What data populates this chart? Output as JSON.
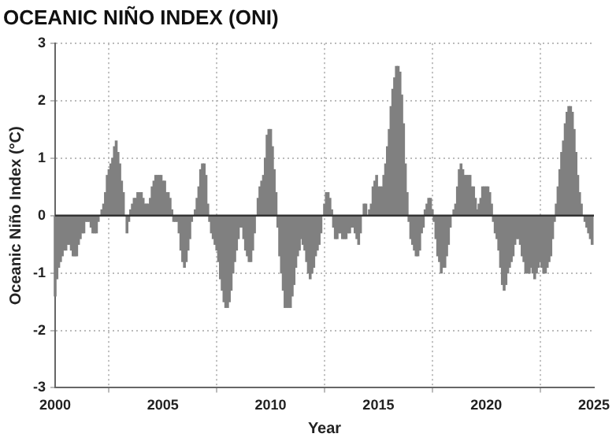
{
  "chart_data": {
    "type": "bar",
    "title": "OCEANIC NIÑO INDEX (ONI)",
    "xlabel": "Year",
    "ylabel": "Oceanic Niño Index (°C)",
    "x": [
      "2000-01",
      "2000-02",
      "2000-03",
      "2000-04",
      "2000-05",
      "2000-06",
      "2000-07",
      "2000-08",
      "2000-09",
      "2000-10",
      "2000-11",
      "2000-12",
      "2001-01",
      "2001-02",
      "2001-03",
      "2001-04",
      "2001-05",
      "2001-06",
      "2001-07",
      "2001-08",
      "2001-09",
      "2001-10",
      "2001-11",
      "2001-12",
      "2002-01",
      "2002-02",
      "2002-03",
      "2002-04",
      "2002-05",
      "2002-06",
      "2002-07",
      "2002-08",
      "2002-09",
      "2002-10",
      "2002-11",
      "2002-12",
      "2003-01",
      "2003-02",
      "2003-03",
      "2003-04",
      "2003-05",
      "2003-06",
      "2003-07",
      "2003-08",
      "2003-09",
      "2003-10",
      "2003-11",
      "2003-12",
      "2004-01",
      "2004-02",
      "2004-03",
      "2004-04",
      "2004-05",
      "2004-06",
      "2004-07",
      "2004-08",
      "2004-09",
      "2004-10",
      "2004-11",
      "2004-12",
      "2005-01",
      "2005-02",
      "2005-03",
      "2005-04",
      "2005-05",
      "2005-06",
      "2005-07",
      "2005-08",
      "2005-09",
      "2005-10",
      "2005-11",
      "2005-12",
      "2006-01",
      "2006-02",
      "2006-03",
      "2006-04",
      "2006-05",
      "2006-06",
      "2006-07",
      "2006-08",
      "2006-09",
      "2006-10",
      "2006-11",
      "2006-12",
      "2007-01",
      "2007-02",
      "2007-03",
      "2007-04",
      "2007-05",
      "2007-06",
      "2007-07",
      "2007-08",
      "2007-09",
      "2007-10",
      "2007-11",
      "2007-12",
      "2008-01",
      "2008-02",
      "2008-03",
      "2008-04",
      "2008-05",
      "2008-06",
      "2008-07",
      "2008-08",
      "2008-09",
      "2008-10",
      "2008-11",
      "2008-12",
      "2009-01",
      "2009-02",
      "2009-03",
      "2009-04",
      "2009-05",
      "2009-06",
      "2009-07",
      "2009-08",
      "2009-09",
      "2009-10",
      "2009-11",
      "2009-12",
      "2010-01",
      "2010-02",
      "2010-03",
      "2010-04",
      "2010-05",
      "2010-06",
      "2010-07",
      "2010-08",
      "2010-09",
      "2010-10",
      "2010-11",
      "2010-12",
      "2011-01",
      "2011-02",
      "2011-03",
      "2011-04",
      "2011-05",
      "2011-06",
      "2011-07",
      "2011-08",
      "2011-09",
      "2011-10",
      "2011-11",
      "2011-12",
      "2012-01",
      "2012-02",
      "2012-03",
      "2012-04",
      "2012-05",
      "2012-06",
      "2012-07",
      "2012-08",
      "2012-09",
      "2012-10",
      "2012-11",
      "2012-12",
      "2013-01",
      "2013-02",
      "2013-03",
      "2013-04",
      "2013-05",
      "2013-06",
      "2013-07",
      "2013-08",
      "2013-09",
      "2013-10",
      "2013-11",
      "2013-12",
      "2014-01",
      "2014-02",
      "2014-03",
      "2014-04",
      "2014-05",
      "2014-06",
      "2014-07",
      "2014-08",
      "2014-09",
      "2014-10",
      "2014-11",
      "2014-12",
      "2015-01",
      "2015-02",
      "2015-03",
      "2015-04",
      "2015-05",
      "2015-06",
      "2015-07",
      "2015-08",
      "2015-09",
      "2015-10",
      "2015-11",
      "2015-12",
      "2016-01",
      "2016-02",
      "2016-03",
      "2016-04",
      "2016-05",
      "2016-06",
      "2016-07",
      "2016-08",
      "2016-09",
      "2016-10",
      "2016-11",
      "2016-12",
      "2017-01",
      "2017-02",
      "2017-03",
      "2017-04",
      "2017-05",
      "2017-06",
      "2017-07",
      "2017-08",
      "2017-09",
      "2017-10",
      "2017-11",
      "2017-12",
      "2018-01",
      "2018-02",
      "2018-03",
      "2018-04",
      "2018-05",
      "2018-06",
      "2018-07",
      "2018-08",
      "2018-09",
      "2018-10",
      "2018-11",
      "2018-12",
      "2019-01",
      "2019-02",
      "2019-03",
      "2019-04",
      "2019-05",
      "2019-06",
      "2019-07",
      "2019-08",
      "2019-09",
      "2019-10",
      "2019-11",
      "2019-12",
      "2020-01",
      "2020-02",
      "2020-03",
      "2020-04",
      "2020-05",
      "2020-06",
      "2020-07",
      "2020-08",
      "2020-09",
      "2020-10",
      "2020-11",
      "2020-12",
      "2021-01",
      "2021-02",
      "2021-03",
      "2021-04",
      "2021-05",
      "2021-06",
      "2021-07",
      "2021-08",
      "2021-09",
      "2021-10",
      "2021-11",
      "2021-12",
      "2022-01",
      "2022-02",
      "2022-03",
      "2022-04",
      "2022-05",
      "2022-06",
      "2022-07",
      "2022-08",
      "2022-09",
      "2022-10",
      "2022-11",
      "2022-12",
      "2023-01",
      "2023-02",
      "2023-03",
      "2023-04",
      "2023-05",
      "2023-06",
      "2023-07",
      "2023-08",
      "2023-09",
      "2023-10",
      "2023-11",
      "2023-12",
      "2024-01",
      "2024-02",
      "2024-03",
      "2024-04",
      "2024-05",
      "2024-06",
      "2024-07",
      "2024-08",
      "2024-09",
      "2024-10",
      "2024-11",
      "2024-12"
    ],
    "values": [
      -1.4,
      -1.1,
      -0.9,
      -0.8,
      -0.7,
      -0.6,
      -0.6,
      -0.5,
      -0.5,
      -0.6,
      -0.7,
      -0.7,
      -0.7,
      -0.5,
      -0.4,
      -0.3,
      -0.3,
      -0.1,
      -0.1,
      -0.1,
      -0.2,
      -0.3,
      -0.3,
      -0.3,
      -0.1,
      0.0,
      0.1,
      0.2,
      0.4,
      0.7,
      0.8,
      0.9,
      1.0,
      1.2,
      1.3,
      1.1,
      0.9,
      0.6,
      0.4,
      0.0,
      -0.3,
      -0.1,
      0.1,
      0.2,
      0.3,
      0.3,
      0.4,
      0.4,
      0.4,
      0.3,
      0.2,
      0.2,
      0.2,
      0.3,
      0.5,
      0.6,
      0.7,
      0.7,
      0.7,
      0.7,
      0.6,
      0.6,
      0.4,
      0.4,
      0.3,
      0.1,
      -0.1,
      -0.1,
      -0.1,
      -0.3,
      -0.6,
      -0.8,
      -0.9,
      -0.8,
      -0.6,
      -0.4,
      -0.1,
      0.0,
      0.1,
      0.3,
      0.5,
      0.8,
      0.9,
      0.9,
      0.7,
      0.2,
      -0.1,
      -0.3,
      -0.4,
      -0.5,
      -0.6,
      -0.8,
      -1.1,
      -1.3,
      -1.5,
      -1.6,
      -1.6,
      -1.5,
      -1.3,
      -1.0,
      -0.8,
      -0.6,
      -0.4,
      -0.2,
      -0.2,
      -0.4,
      -0.6,
      -0.7,
      -0.8,
      -0.8,
      -0.6,
      -0.3,
      0.0,
      0.3,
      0.5,
      0.6,
      0.7,
      1.0,
      1.4,
      1.5,
      1.5,
      1.2,
      0.8,
      0.4,
      -0.2,
      -0.7,
      -1.0,
      -1.3,
      -1.6,
      -1.6,
      -1.6,
      -1.6,
      -1.4,
      -1.2,
      -0.9,
      -0.7,
      -0.6,
      -0.4,
      -0.5,
      -0.6,
      -0.8,
      -1.0,
      -1.1,
      -1.0,
      -0.9,
      -0.7,
      -0.6,
      -0.5,
      -0.3,
      0.0,
      0.2,
      0.4,
      0.4,
      0.3,
      0.1,
      -0.2,
      -0.4,
      -0.4,
      -0.3,
      -0.3,
      -0.4,
      -0.4,
      -0.4,
      -0.3,
      -0.3,
      -0.2,
      -0.2,
      -0.3,
      -0.4,
      -0.5,
      -0.3,
      0.0,
      0.2,
      0.2,
      0.0,
      0.1,
      0.2,
      0.5,
      0.6,
      0.7,
      0.5,
      0.5,
      0.5,
      0.7,
      0.9,
      1.2,
      1.5,
      1.9,
      2.2,
      2.4,
      2.6,
      2.6,
      2.5,
      2.1,
      1.6,
      0.9,
      0.4,
      -0.1,
      -0.4,
      -0.5,
      -0.6,
      -0.7,
      -0.7,
      -0.6,
      -0.3,
      -0.2,
      0.1,
      0.2,
      0.3,
      0.3,
      0.1,
      -0.1,
      -0.4,
      -0.7,
      -0.8,
      -1.0,
      -0.9,
      -0.9,
      -0.7,
      -0.5,
      -0.2,
      0.0,
      0.1,
      0.2,
      0.5,
      0.8,
      0.9,
      0.8,
      0.7,
      0.7,
      0.7,
      0.7,
      0.5,
      0.5,
      0.3,
      0.1,
      0.2,
      0.3,
      0.5,
      0.5,
      0.5,
      0.5,
      0.4,
      0.2,
      -0.1,
      -0.3,
      -0.4,
      -0.6,
      -0.9,
      -1.2,
      -1.3,
      -1.2,
      -1.0,
      -0.9,
      -0.8,
      -0.7,
      -0.5,
      -0.4,
      -0.4,
      -0.5,
      -0.7,
      -0.8,
      -1.0,
      -1.0,
      -1.0,
      -0.9,
      -1.0,
      -1.1,
      -1.0,
      -0.9,
      -0.8,
      -0.9,
      -1.0,
      -1.0,
      -0.9,
      -0.8,
      -0.7,
      -0.4,
      -0.1,
      0.2,
      0.5,
      0.8,
      1.1,
      1.3,
      1.6,
      1.8,
      1.9,
      1.9,
      1.8,
      1.5,
      1.1,
      0.7,
      0.4,
      0.2,
      0.0,
      -0.1,
      -0.2,
      -0.3,
      -0.4,
      -0.5
    ],
    "color": "#808080",
    "xlim": [
      "2000",
      "2025"
    ],
    "xticks": [
      "2000",
      "2005",
      "2010",
      "2015",
      "2020",
      "2025"
    ],
    "ylim": [
      -3,
      3
    ],
    "yticks": [
      -3,
      -2,
      -1,
      0,
      1,
      2,
      3
    ],
    "grid": true
  }
}
